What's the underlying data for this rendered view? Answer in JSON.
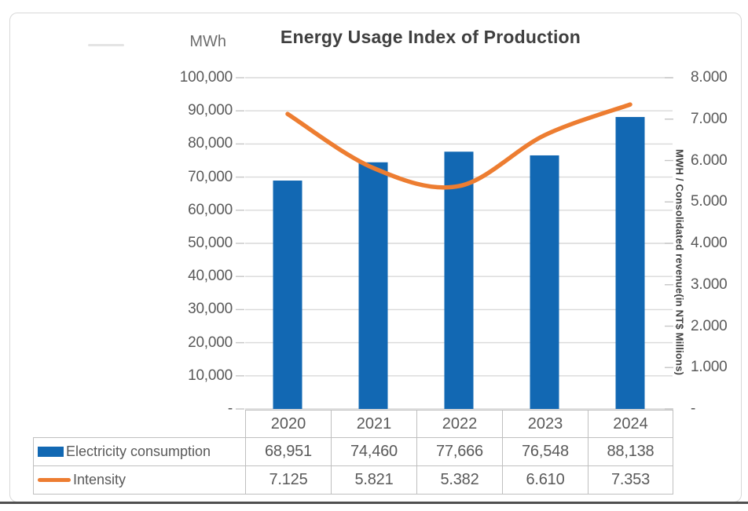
{
  "chart_data": {
    "type": "combo-bar-line",
    "title": "Energy Usage Index of Production",
    "categories": [
      "2020",
      "2021",
      "2022",
      "2023",
      "2024"
    ],
    "series": [
      {
        "name": "Electricity consumption",
        "type": "bar",
        "axis": "left",
        "color": "#1268b3",
        "values": [
          68951,
          74460,
          77666,
          76548,
          88138
        ],
        "display_values": [
          "68,951",
          "74,460",
          "77,666",
          "76,548",
          "88,138"
        ]
      },
      {
        "name": "Intensity",
        "type": "line",
        "axis": "right",
        "color": "#ed7d31",
        "values": [
          7.125,
          5.821,
          5.382,
          6.61,
          7.353
        ],
        "display_values": [
          "7.125",
          "5.821",
          "5.382",
          "6.610",
          "7.353"
        ]
      }
    ],
    "left_axis": {
      "label": "MWh",
      "min": 0,
      "max": 100000,
      "step": 10000,
      "tick_labels": [
        "100,000",
        "90,000",
        "80,000",
        "70,000",
        "60,000",
        "50,000",
        "40,000",
        "30,000",
        "20,000",
        "10,000",
        "-"
      ],
      "tick_values": [
        100000,
        90000,
        80000,
        70000,
        60000,
        50000,
        40000,
        30000,
        20000,
        10000,
        0
      ]
    },
    "right_axis": {
      "label": "MWH / Consolidated revenue(in NT$ Millions)",
      "min": 0,
      "max": 8,
      "step": 1,
      "tick_labels": [
        "8.000",
        "7.000",
        "6.000",
        "5.000",
        "4.000",
        "3.000",
        "2.000",
        "1.000",
        "-"
      ],
      "tick_values": [
        8,
        7,
        6,
        5,
        4,
        3,
        2,
        1,
        0
      ]
    },
    "grid": true,
    "legend_position": "table-bottom",
    "colors": {
      "grid": "#d9d9d9",
      "tick": "#c6c6c6",
      "axis_text": "#595959",
      "title_text": "#3f3f3f",
      "table_border": "#bfbfbf",
      "bottom_edge": "#4f4f4f"
    }
  }
}
